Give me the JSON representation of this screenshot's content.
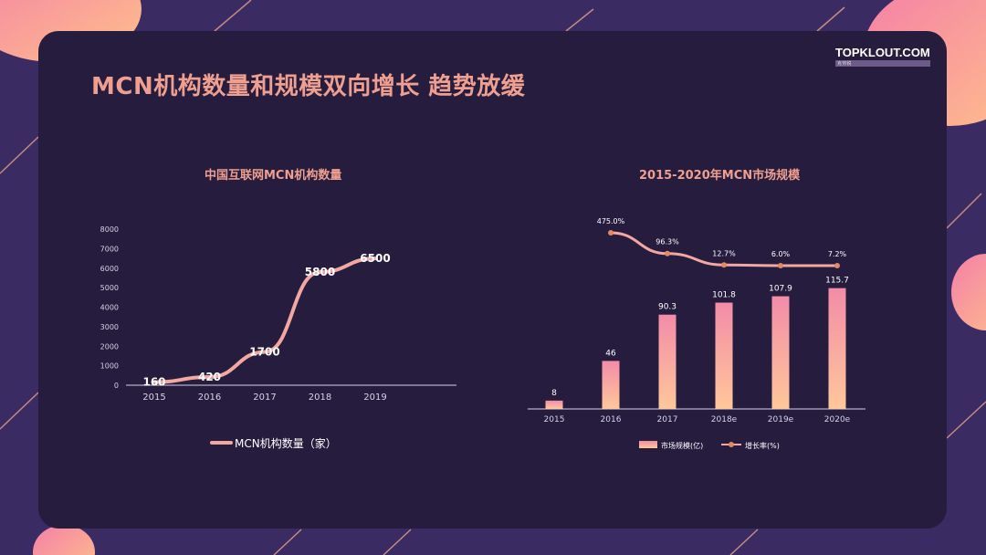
{
  "page": {
    "title": "MCN机构数量和规模双向增长 趋势放缓",
    "logo": "TOPKLOUT.COM",
    "logo_sub": "克劳锐"
  },
  "colors": {
    "background": "#3b2b63",
    "panel": "#261c3e",
    "accent": "#ee9f8f",
    "line": "#f2a7a0",
    "bar_top": "#f28ca8",
    "bar_bottom": "#ffc79a",
    "growth": "#e48a63"
  },
  "chart_data": [
    {
      "type": "line",
      "title": "中国互联网MCN机构数量",
      "categories": [
        "2015",
        "2016",
        "2017",
        "2018",
        "2019"
      ],
      "series": [
        {
          "name": "MCN机构数量（家）",
          "values": [
            160,
            420,
            1700,
            5800,
            6500
          ]
        }
      ],
      "y_ticks": [
        0,
        1000,
        2000,
        3000,
        4000,
        5000,
        6000,
        7000,
        8000
      ],
      "ylim": [
        0,
        8000
      ],
      "legend": "bottom"
    },
    {
      "type": "bar",
      "title": "2015-2020年MCN市场规模",
      "categories": [
        "2015",
        "2016",
        "2017",
        "2018e",
        "2019e",
        "2020e"
      ],
      "series": [
        {
          "name": "市场规模(亿)",
          "type": "bar",
          "values": [
            8,
            46,
            90.3,
            101.8,
            107.9,
            115.7
          ]
        },
        {
          "name": "增长率(%)",
          "type": "line",
          "values": [
            null,
            475.0,
            96.3,
            12.7,
            6.0,
            7.2
          ]
        }
      ],
      "bar_labels": [
        "8",
        "46",
        "90.3",
        "101.8",
        "107.9",
        "115.7"
      ],
      "growth_labels": [
        "",
        "475.0%",
        "96.3%",
        "12.7%",
        "6.0%",
        "7.2%"
      ],
      "legend": "bottom"
    }
  ]
}
